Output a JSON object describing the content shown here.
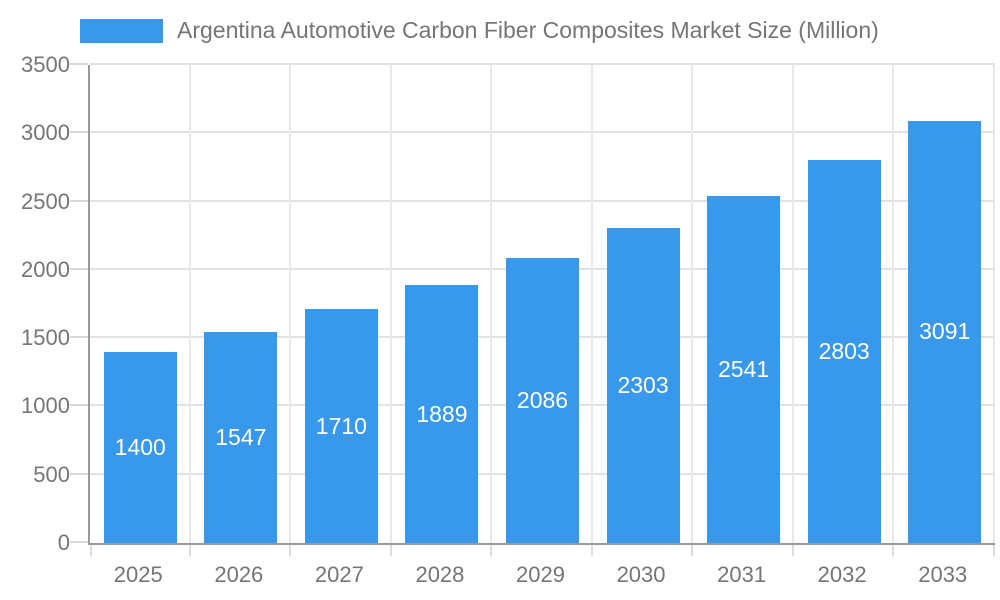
{
  "legend": {
    "label": "Argentina Automotive Carbon Fiber Composites Market Size (Million)",
    "swatch_color": "#3898EC"
  },
  "chart_data": {
    "type": "bar",
    "title": "Argentina Automotive Carbon Fiber Composites Market Size (Million)",
    "series_name": "Argentina Automotive Carbon Fiber Composites Market Size (Million)",
    "categories": [
      "2025",
      "2026",
      "2027",
      "2028",
      "2029",
      "2030",
      "2031",
      "2032",
      "2033"
    ],
    "values": [
      1400,
      1547,
      1710,
      1889,
      2086,
      2303,
      2541,
      2803,
      3091
    ],
    "xlabel": "",
    "ylabel": "",
    "ylim": [
      0,
      3500
    ],
    "yticks": [
      0,
      500,
      1000,
      1500,
      2000,
      2500,
      3000,
      3500
    ],
    "grid": true,
    "legend_position": "top-left",
    "bar_label_position": "center",
    "bar_color": "#3898EC",
    "bar_label_color": "#FFFFFF",
    "axis_color": "#999999",
    "grid_color": "#E2E2E2",
    "text_color": "#757575",
    "background_color": "#FFFFFF"
  }
}
